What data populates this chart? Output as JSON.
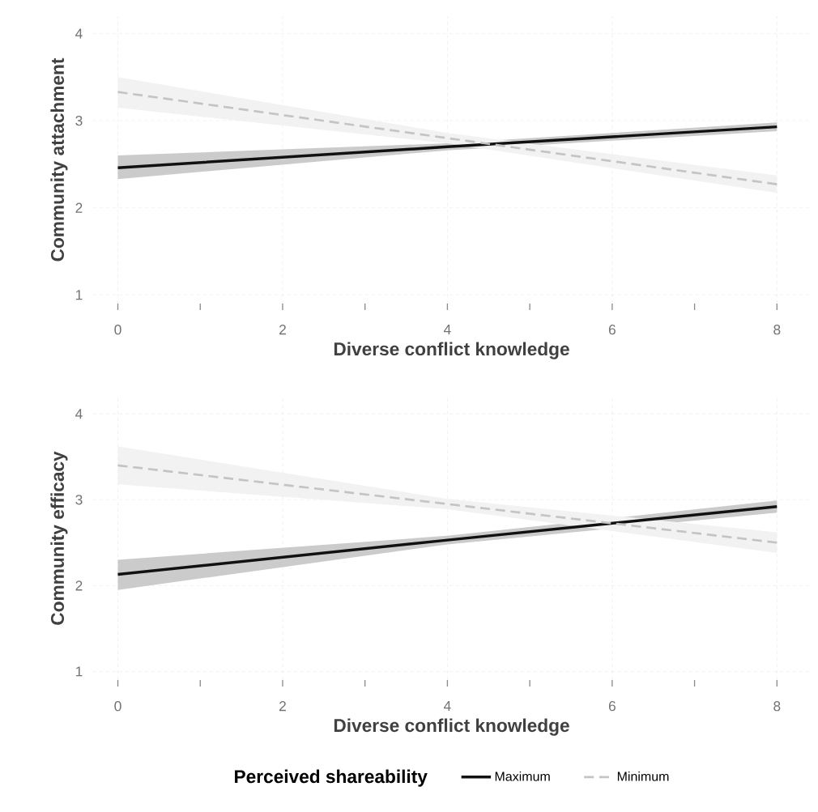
{
  "chart_data": [
    {
      "type": "line",
      "xlabel": "Diverse conflict knowledge",
      "ylabel": "Community attachment",
      "xlim": [
        -0.3,
        8.4
      ],
      "ylim": [
        0.9,
        4.2
      ],
      "xticks": [
        0,
        {
          "value": 1,
          "label": null
        },
        2,
        {
          "value": 3,
          "label": null
        },
        4,
        {
          "value": 5,
          "label": null
        },
        6,
        {
          "value": 7,
          "label": null
        },
        8
      ],
      "yticks": [
        1,
        2,
        3,
        4
      ],
      "grid": true,
      "legend": false,
      "series": [
        {
          "color": "#111111",
          "line_style": "solid",
          "x": [
            0,
            4,
            8
          ],
          "values": [
            2.46,
            2.7,
            2.93
          ],
          "lower": [
            2.33,
            2.66,
            2.88
          ],
          "upper": [
            2.6,
            2.74,
            2.98
          ]
        },
        {
          "color": "#c4c4c4",
          "line_style": "dashed",
          "x": [
            0,
            4,
            8
          ],
          "values": [
            3.33,
            2.8,
            2.27
          ],
          "lower": [
            3.15,
            2.74,
            2.17
          ],
          "upper": [
            3.5,
            2.86,
            2.37
          ]
        }
      ]
    },
    {
      "type": "line",
      "xlabel": "Diverse conflict knowledge",
      "ylabel": "Community efficacy",
      "legend_title": "Perceived shareability",
      "xlim": [
        -0.3,
        8.4
      ],
      "ylim": [
        0.9,
        4.2
      ],
      "xticks": [
        0,
        {
          "value": 1,
          "label": null
        },
        2,
        {
          "value": 3,
          "label": null
        },
        4,
        {
          "value": 5,
          "label": null
        },
        6,
        {
          "value": 7,
          "label": null
        },
        8
      ],
      "yticks": [
        1,
        2,
        3,
        4
      ],
      "grid": true,
      "legend": "bottom",
      "series": [
        {
          "name": "Maximum",
          "color": "#111111",
          "line_style": "solid",
          "x": [
            0,
            4,
            8
          ],
          "values": [
            2.13,
            2.53,
            2.92
          ],
          "lower": [
            1.95,
            2.48,
            2.85
          ],
          "upper": [
            2.3,
            2.58,
            2.99
          ]
        },
        {
          "name": "Minimum",
          "color": "#c4c4c4",
          "line_style": "dashed",
          "x": [
            0,
            4,
            8
          ],
          "values": [
            3.4,
            2.95,
            2.5
          ],
          "lower": [
            3.18,
            2.89,
            2.38
          ],
          "upper": [
            3.62,
            3.01,
            2.62
          ]
        }
      ]
    }
  ]
}
